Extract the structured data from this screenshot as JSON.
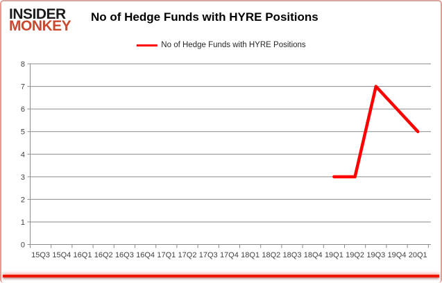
{
  "logo": {
    "line1": "INSIDER",
    "line2": "MONKEY"
  },
  "header": {
    "title": "No of Hedge Funds with HYRE Positions"
  },
  "legend": {
    "items": [
      {
        "label": "No of Hedge Funds with HYRE Positions",
        "color": "#ff0000"
      }
    ]
  },
  "chart_data": {
    "type": "line",
    "title": "No of Hedge Funds with HYRE Positions",
    "categories": [
      "15Q3",
      "15Q4",
      "16Q1",
      "16Q2",
      "16Q3",
      "16Q4",
      "17Q1",
      "17Q2",
      "17Q3",
      "17Q4",
      "18Q1",
      "18Q2",
      "18Q3",
      "18Q4",
      "19Q1",
      "19Q2",
      "19Q3",
      "19Q4",
      "20Q1"
    ],
    "series": [
      {
        "name": "No of Hedge Funds with HYRE Positions",
        "color": "#ff0000",
        "values": [
          null,
          null,
          null,
          null,
          null,
          null,
          null,
          null,
          null,
          null,
          null,
          null,
          null,
          null,
          3,
          3,
          7,
          6,
          5
        ]
      }
    ],
    "ylim": [
      0,
      8
    ],
    "ytick_step": 1,
    "xlabel": "",
    "ylabel": "",
    "grid": true,
    "legend_position": "top-center"
  },
  "colors": {
    "grid": "#8a8a8a",
    "axis_text": "#404040",
    "series_red": "#ff0000",
    "frame_border": "#e59a92",
    "frame_bottom": "#f01505",
    "logo_black": "#1b1b1b",
    "logo_red": "#c9492e"
  }
}
